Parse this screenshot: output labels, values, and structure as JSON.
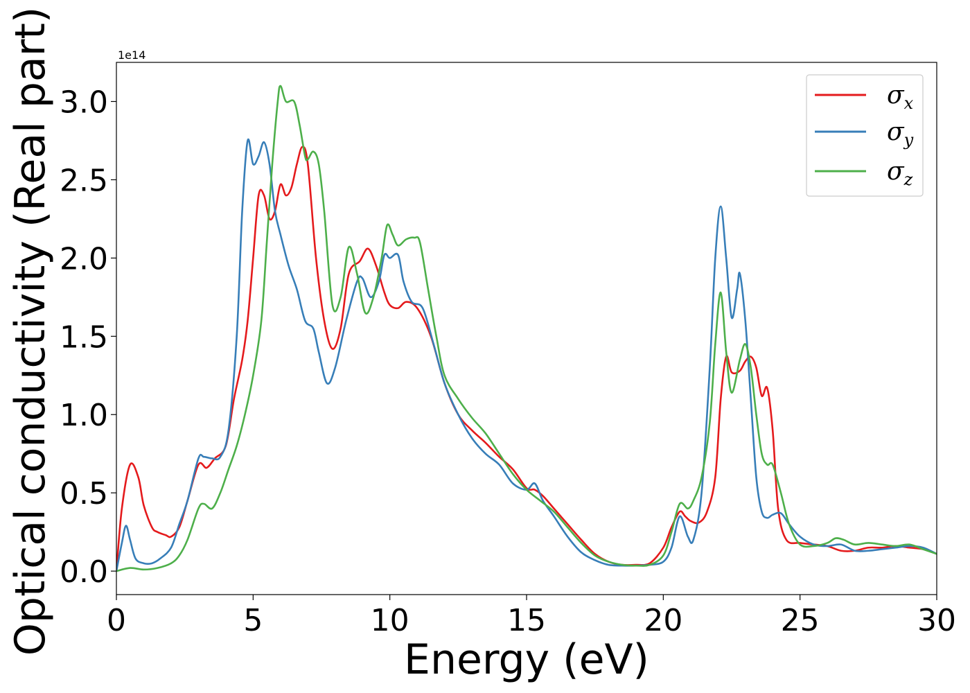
{
  "chart_data": {
    "type": "line",
    "title": "",
    "xlabel": "Energy (eV)",
    "ylabel": "Optical conductivity (Real part)",
    "y_offset_text": "1e14",
    "xlim": [
      0,
      30
    ],
    "ylim": [
      -0.15,
      3.25
    ],
    "xticks": [
      0,
      5,
      10,
      15,
      20,
      25,
      30
    ],
    "xtick_labels": [
      "0",
      "5",
      "10",
      "15",
      "20",
      "25",
      "30"
    ],
    "yticks": [
      0.0,
      0.5,
      1.0,
      1.5,
      2.0,
      2.5,
      3.0
    ],
    "ytick_labels": [
      "0.0",
      "0.5",
      "1.0",
      "1.5",
      "2.0",
      "2.5",
      "3.0"
    ],
    "grid": false,
    "legend": "top-right",
    "series": [
      {
        "name": "σx",
        "symbol": "σ",
        "subscript": "x",
        "color": "#e41a1c",
        "x": [
          0,
          0.2,
          0.5,
          0.8,
          1.0,
          1.3,
          1.5,
          1.8,
          2.0,
          2.3,
          2.6,
          3.0,
          3.3,
          3.6,
          4.0,
          4.3,
          4.6,
          4.8,
          5.0,
          5.2,
          5.4,
          5.6,
          5.8,
          6.0,
          6.2,
          6.4,
          6.6,
          6.8,
          7.0,
          7.3,
          7.6,
          7.9,
          8.2,
          8.5,
          8.9,
          9.2,
          9.5,
          9.8,
          10.0,
          10.3,
          10.6,
          11.0,
          11.5,
          12.0,
          12.5,
          13.0,
          13.5,
          14.0,
          14.5,
          15.0,
          15.3,
          15.6,
          16.0,
          16.5,
          17.0,
          17.5,
          18.0,
          18.5,
          19.0,
          19.5,
          20.0,
          20.3,
          20.6,
          20.8,
          21.0,
          21.3,
          21.6,
          21.9,
          22.1,
          22.3,
          22.5,
          22.8,
          23.0,
          23.2,
          23.4,
          23.6,
          23.8,
          24.0,
          24.2,
          24.5,
          25.0,
          25.5,
          26.0,
          26.5,
          27.0,
          27.5,
          28.0,
          28.5,
          29.0,
          29.5,
          30.0
        ],
        "y": [
          0.0,
          0.4,
          0.68,
          0.6,
          0.42,
          0.28,
          0.25,
          0.23,
          0.22,
          0.28,
          0.45,
          0.68,
          0.66,
          0.72,
          0.8,
          1.1,
          1.35,
          1.6,
          2.0,
          2.4,
          2.4,
          2.25,
          2.3,
          2.47,
          2.4,
          2.45,
          2.6,
          2.71,
          2.6,
          2.0,
          1.6,
          1.42,
          1.55,
          1.9,
          1.98,
          2.06,
          1.95,
          1.78,
          1.7,
          1.68,
          1.72,
          1.68,
          1.5,
          1.2,
          1.0,
          0.9,
          0.82,
          0.73,
          0.65,
          0.53,
          0.52,
          0.48,
          0.4,
          0.3,
          0.2,
          0.11,
          0.06,
          0.04,
          0.04,
          0.05,
          0.15,
          0.28,
          0.38,
          0.35,
          0.32,
          0.31,
          0.38,
          0.6,
          1.1,
          1.37,
          1.27,
          1.28,
          1.34,
          1.37,
          1.3,
          1.12,
          1.17,
          0.9,
          0.4,
          0.2,
          0.18,
          0.17,
          0.16,
          0.13,
          0.13,
          0.15,
          0.15,
          0.16,
          0.15,
          0.14,
          0.11
        ]
      },
      {
        "name": "σy",
        "symbol": "σ",
        "subscript": "y",
        "color": "#377eb8",
        "x": [
          0,
          0.2,
          0.35,
          0.5,
          0.7,
          1.0,
          1.3,
          1.6,
          2.0,
          2.3,
          2.6,
          3.0,
          3.2,
          3.5,
          3.8,
          4.1,
          4.4,
          4.6,
          4.8,
          5.0,
          5.2,
          5.4,
          5.6,
          5.8,
          6.0,
          6.3,
          6.6,
          6.9,
          7.2,
          7.4,
          7.7,
          8.0,
          8.4,
          8.8,
          9.0,
          9.3,
          9.6,
          9.8,
          10.0,
          10.3,
          10.5,
          10.8,
          11.2,
          11.6,
          12.0,
          12.5,
          13.0,
          13.5,
          14.0,
          14.5,
          15.0,
          15.3,
          15.6,
          16.0,
          16.5,
          17.0,
          17.5,
          18.0,
          18.5,
          19.0,
          19.5,
          20.0,
          20.3,
          20.6,
          20.9,
          21.1,
          21.4,
          21.7,
          21.9,
          22.1,
          22.3,
          22.5,
          22.7,
          22.8,
          23.0,
          23.2,
          23.4,
          23.6,
          23.8,
          24.0,
          24.3,
          24.6,
          25.0,
          25.5,
          26.0,
          26.5,
          27.0,
          27.5,
          28.0,
          28.5,
          29.0,
          29.5,
          30.0
        ],
        "y": [
          0.0,
          0.18,
          0.29,
          0.2,
          0.08,
          0.05,
          0.05,
          0.08,
          0.15,
          0.3,
          0.45,
          0.72,
          0.73,
          0.72,
          0.73,
          0.9,
          1.5,
          2.3,
          2.75,
          2.6,
          2.65,
          2.74,
          2.6,
          2.3,
          2.15,
          1.95,
          1.8,
          1.6,
          1.55,
          1.4,
          1.2,
          1.3,
          1.6,
          1.85,
          1.87,
          1.75,
          1.85,
          2.02,
          2.0,
          2.02,
          1.85,
          1.72,
          1.68,
          1.45,
          1.2,
          1.0,
          0.85,
          0.75,
          0.68,
          0.56,
          0.52,
          0.56,
          0.45,
          0.35,
          0.22,
          0.12,
          0.07,
          0.04,
          0.035,
          0.035,
          0.04,
          0.06,
          0.15,
          0.35,
          0.22,
          0.2,
          0.5,
          1.3,
          2.0,
          2.33,
          2.0,
          1.62,
          1.8,
          1.9,
          1.6,
          1.1,
          0.6,
          0.38,
          0.34,
          0.36,
          0.37,
          0.3,
          0.22,
          0.17,
          0.16,
          0.17,
          0.13,
          0.13,
          0.14,
          0.15,
          0.16,
          0.15,
          0.11
        ]
      },
      {
        "name": "σz",
        "symbol": "σ",
        "subscript": "z",
        "color": "#4daf4a",
        "x": [
          0,
          0.5,
          1.0,
          1.5,
          2.0,
          2.3,
          2.6,
          3.0,
          3.2,
          3.5,
          3.8,
          4.1,
          4.4,
          4.7,
          5.0,
          5.3,
          5.5,
          5.7,
          5.9,
          6.0,
          6.2,
          6.5,
          6.7,
          6.9,
          7.0,
          7.2,
          7.4,
          7.6,
          7.9,
          8.2,
          8.5,
          8.8,
          9.1,
          9.4,
          9.7,
          9.9,
          10.1,
          10.3,
          10.6,
          10.9,
          11.1,
          11.4,
          11.7,
          12.0,
          12.5,
          13.0,
          13.5,
          14.0,
          14.5,
          15.0,
          15.5,
          16.0,
          16.5,
          17.0,
          17.5,
          18.0,
          18.5,
          19.0,
          19.5,
          20.0,
          20.3,
          20.6,
          20.9,
          21.1,
          21.4,
          21.7,
          21.9,
          22.1,
          22.3,
          22.5,
          22.8,
          23.0,
          23.2,
          23.4,
          23.6,
          23.8,
          24.0,
          24.3,
          24.6,
          25.0,
          25.5,
          26.0,
          26.3,
          26.6,
          27.0,
          27.5,
          28.0,
          28.5,
          29.0,
          29.5,
          30.0
        ],
        "y": [
          0.0,
          0.02,
          0.01,
          0.02,
          0.05,
          0.1,
          0.2,
          0.4,
          0.43,
          0.4,
          0.5,
          0.65,
          0.8,
          1.0,
          1.25,
          1.6,
          2.1,
          2.6,
          3.0,
          3.1,
          3.0,
          3.0,
          2.85,
          2.65,
          2.63,
          2.68,
          2.6,
          2.3,
          1.7,
          1.75,
          2.07,
          1.9,
          1.65,
          1.75,
          2.0,
          2.21,
          2.15,
          2.08,
          2.12,
          2.13,
          2.1,
          1.8,
          1.5,
          1.25,
          1.1,
          0.98,
          0.88,
          0.75,
          0.62,
          0.52,
          0.45,
          0.38,
          0.28,
          0.18,
          0.1,
          0.06,
          0.04,
          0.035,
          0.04,
          0.1,
          0.25,
          0.43,
          0.4,
          0.45,
          0.6,
          0.95,
          1.45,
          1.78,
          1.4,
          1.14,
          1.35,
          1.45,
          1.3,
          1.0,
          0.75,
          0.68,
          0.68,
          0.5,
          0.3,
          0.17,
          0.16,
          0.18,
          0.21,
          0.2,
          0.17,
          0.18,
          0.17,
          0.16,
          0.17,
          0.14,
          0.11
        ]
      }
    ]
  }
}
